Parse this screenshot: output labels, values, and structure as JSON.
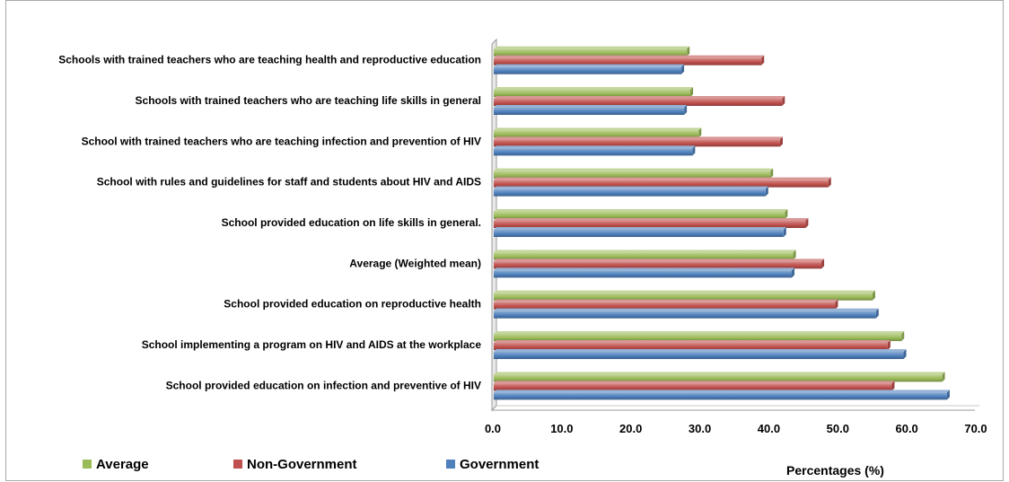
{
  "chart_data": {
    "type": "bar",
    "orientation": "horizontal",
    "categories": [
      "Schools with trained teachers who are teaching health and reproductive education",
      "Schools with trained teachers who are teaching life skills in general",
      "School with trained teachers who are teaching infection and prevention of HIV",
      "School with rules and guidelines for staff and students about HIV and AIDS",
      "School provided education on life skills in general.",
      "Average (Weighted mean)",
      "School provided education on reproductive health",
      "School  implementing a program on HIV and AIDS at the workplace",
      "School provided education on infection and preventive of HIV"
    ],
    "series": [
      {
        "name": "Average",
        "color": "#9bbb59",
        "values": [
          28.0,
          28.5,
          29.7,
          40.1,
          42.2,
          43.4,
          54.9,
          59.1,
          65.0
        ]
      },
      {
        "name": "Non-Government",
        "color": "#c0504d",
        "values": [
          38.8,
          41.8,
          41.5,
          48.5,
          45.2,
          47.5,
          49.5,
          57.1,
          57.7
        ]
      },
      {
        "name": "Government",
        "color": "#4f81bd",
        "values": [
          27.2,
          27.6,
          28.8,
          39.4,
          42.0,
          43.2,
          55.4,
          59.4,
          65.7
        ]
      }
    ],
    "xlim": [
      0,
      70
    ],
    "xticks": [
      "0.0",
      "10.0",
      "20.0",
      "30.0",
      "40.0",
      "50.0",
      "60.0",
      "70.0"
    ],
    "xlabel": "Percentages (%)",
    "legend_position": "bottom",
    "grid": false
  }
}
